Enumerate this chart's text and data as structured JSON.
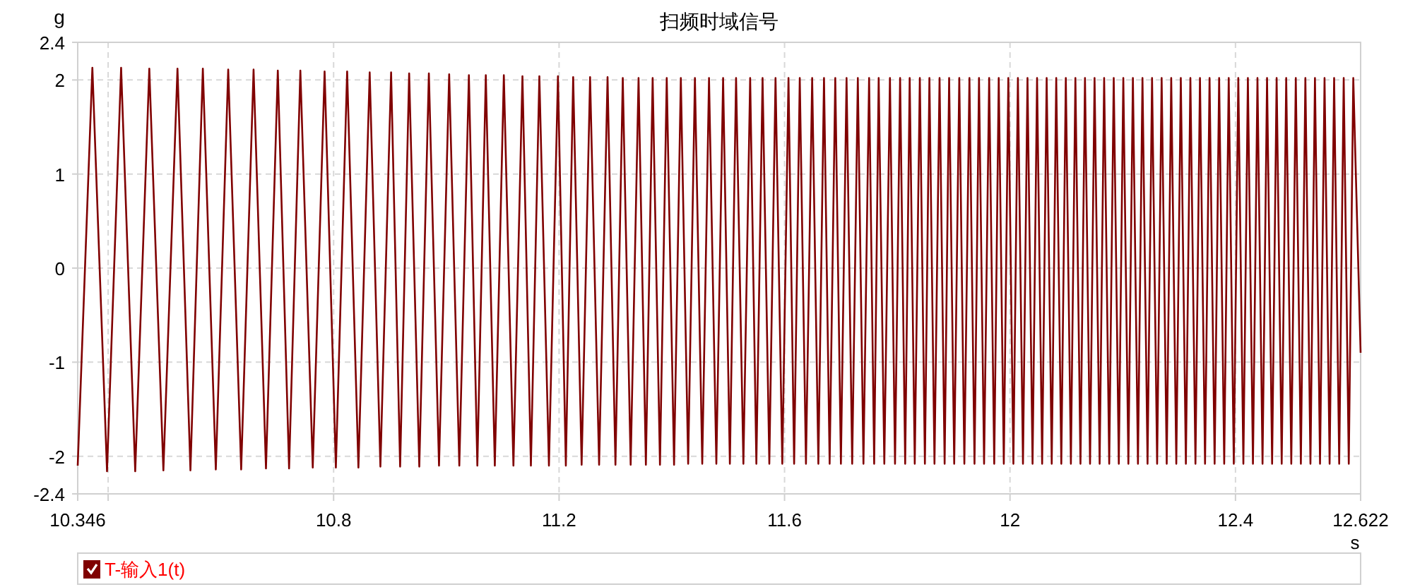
{
  "chart_data": {
    "type": "line",
    "title": "扫频时域信号",
    "xlabel": "s",
    "ylabel": "g",
    "x": [
      10.346,
      10.372,
      10.398,
      10.423,
      10.448,
      10.473,
      10.498,
      10.523,
      10.546,
      10.568,
      10.591,
      10.613,
      10.636,
      10.658,
      10.68,
      10.701,
      10.721,
      10.741,
      10.763,
      10.784,
      10.804,
      10.824,
      10.844,
      10.864,
      10.883,
      10.902,
      10.918,
      10.934,
      10.952,
      10.969,
      10.987,
      11.005,
      11.023,
      11.04,
      11.055,
      11.07,
      11.086,
      11.102,
      11.119,
      11.135,
      11.15,
      11.165,
      11.182,
      11.198,
      11.212,
      11.225,
      11.24,
      11.255,
      11.271,
      11.286,
      11.3,
      11.313,
      11.327,
      11.341,
      11.354,
      11.366,
      11.379,
      11.391,
      11.404,
      11.416,
      11.429,
      11.441,
      11.454,
      11.466,
      11.479,
      11.491,
      11.503,
      11.514,
      11.527,
      11.539,
      11.55,
      11.561,
      11.573,
      11.584,
      11.596,
      11.607,
      11.617,
      11.627,
      11.638,
      11.649,
      11.66,
      11.67,
      11.68,
      11.69,
      11.7,
      11.71,
      11.72,
      11.73,
      11.74,
      11.75,
      11.759,
      11.767,
      11.777,
      11.787,
      11.796,
      11.805,
      11.814,
      11.822,
      11.831,
      11.84,
      11.849,
      11.857,
      11.866,
      11.875,
      11.884,
      11.892,
      11.901,
      11.91,
      11.919,
      11.928,
      11.937,
      11.945,
      11.954,
      11.963,
      11.972,
      11.98,
      11.989,
      11.997,
      12.006,
      12.014,
      12.023,
      12.031,
      12.04,
      12.048,
      12.057,
      12.065,
      12.074,
      12.082,
      12.091,
      12.099,
      12.108,
      12.116,
      12.125,
      12.133,
      12.142,
      12.15,
      12.159,
      12.167,
      12.176,
      12.184,
      12.193,
      12.201,
      12.21,
      12.218,
      12.227,
      12.235,
      12.244,
      12.252,
      12.261,
      12.269,
      12.278,
      12.286,
      12.295,
      12.303,
      12.312,
      12.32,
      12.329,
      12.337,
      12.346,
      12.354,
      12.363,
      12.371,
      12.38,
      12.388,
      12.397,
      12.405,
      12.414,
      12.422,
      12.431,
      12.439,
      12.448,
      12.456,
      12.465,
      12.473,
      12.482,
      12.49,
      12.499,
      12.507,
      12.516,
      12.524,
      12.533,
      12.541,
      12.55,
      12.558,
      12.567,
      12.575,
      12.584,
      12.592,
      12.601,
      12.609,
      12.622
    ],
    "series": [
      {
        "name": "T-输入1(t)",
        "color": "#800000",
        "values": [
          -2.1,
          2.13,
          -2.16,
          2.13,
          -2.16,
          2.12,
          -2.15,
          2.12,
          -2.15,
          2.12,
          -2.14,
          2.11,
          -2.14,
          2.11,
          -2.13,
          2.1,
          -2.13,
          2.1,
          -2.12,
          2.09,
          -2.12,
          2.09,
          -2.12,
          2.08,
          -2.11,
          2.08,
          -2.11,
          2.07,
          -2.11,
          2.07,
          -2.1,
          2.06,
          -2.1,
          2.05,
          -2.1,
          2.05,
          -2.1,
          2.05,
          -2.1,
          2.04,
          -2.1,
          2.04,
          -2.1,
          2.04,
          -2.1,
          2.03,
          -2.09,
          2.03,
          -2.09,
          2.03,
          -2.09,
          2.02,
          -2.09,
          2.02,
          -2.09,
          2.02,
          -2.09,
          2.02,
          -2.09,
          2.02,
          -2.08,
          2.02,
          -2.08,
          2.02,
          -2.08,
          2.02,
          -2.08,
          2.02,
          -2.08,
          2.02,
          -2.08,
          2.02,
          -2.08,
          2.02,
          -2.08,
          2.02,
          -2.08,
          2.02,
          -2.08,
          2.02,
          -2.08,
          2.02,
          -2.08,
          2.02,
          -2.08,
          2.02,
          -2.08,
          2.02,
          -2.08,
          2.02,
          -2.08,
          2.02,
          -2.08,
          2.02,
          -2.08,
          2.02,
          -2.08,
          2.02,
          -2.08,
          2.02,
          -2.08,
          2.02,
          -2.08,
          2.02,
          -2.08,
          2.02,
          -2.08,
          2.02,
          -2.08,
          2.02,
          -2.08,
          2.02,
          -2.08,
          2.02,
          -2.08,
          2.02,
          -2.08,
          2.02,
          -2.08,
          2.02,
          -2.08,
          2.02,
          -2.08,
          2.02,
          -2.08,
          2.02,
          -2.08,
          2.02,
          -2.08,
          2.02,
          -2.08,
          2.02,
          -2.08,
          2.02,
          -2.08,
          2.02,
          -2.08,
          2.02,
          -2.08,
          2.02,
          -2.08,
          2.02,
          -2.08,
          2.02,
          -2.08,
          2.02,
          -2.08,
          2.02,
          -2.08,
          2.02,
          -2.08,
          2.02,
          -2.08,
          2.02,
          -2.08,
          2.02,
          -2.08,
          2.02,
          -2.08,
          2.02,
          -2.08,
          2.02,
          -2.08,
          2.02,
          -2.08,
          2.02,
          -2.08,
          2.02,
          -2.08,
          2.02,
          -2.08,
          2.02,
          -2.08,
          2.02,
          -2.08,
          2.02,
          -2.08,
          2.02,
          -2.08,
          2.02,
          -2.08,
          2.02,
          -2.08,
          2.02,
          -2.08,
          2.02,
          -2.08,
          2.02,
          -2.08,
          2.02,
          -0.9
        ]
      }
    ],
    "xlim": [
      10.346,
      12.622
    ],
    "ylim": [
      -2.4,
      2.4
    ],
    "xticks": [
      10.346,
      {
        "value": 10.4,
        "label": null
      },
      10.8,
      11.2,
      11.6,
      12,
      12.4,
      12.622
    ],
    "yticks": [
      2.4,
      2,
      1,
      0,
      -1,
      -2,
      -2.4
    ],
    "grid": true,
    "legend": "bottom",
    "marker": "none",
    "line_style": "solid"
  }
}
